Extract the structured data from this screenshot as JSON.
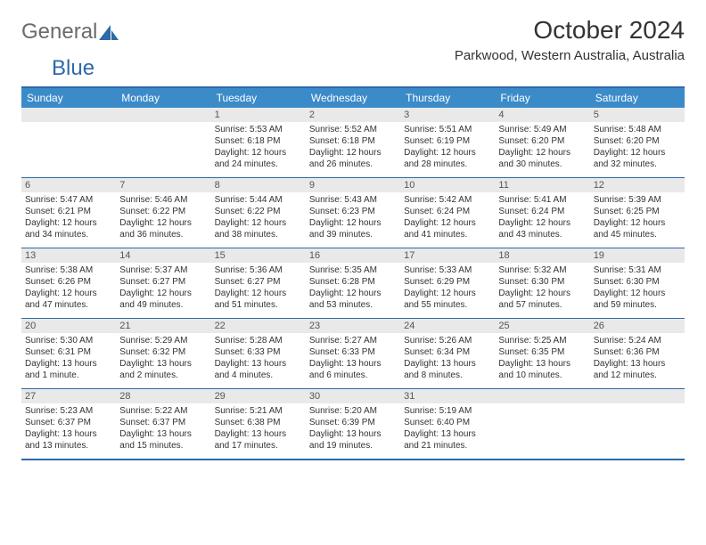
{
  "logo": {
    "part1": "General",
    "part2": "Blue"
  },
  "title": "October 2024",
  "location": "Parkwood, Western Australia, Australia",
  "colors": {
    "header_bg": "#3b8bc9",
    "border": "#2f6aa8",
    "daynum_bg": "#e9e9e9",
    "text": "#333333",
    "header_text": "#ffffff"
  },
  "dayHeaders": [
    "Sunday",
    "Monday",
    "Tuesday",
    "Wednesday",
    "Thursday",
    "Friday",
    "Saturday"
  ],
  "weeks": [
    [
      null,
      null,
      {
        "n": "1",
        "sunrise": "5:53 AM",
        "sunset": "6:18 PM",
        "daylight": "12 hours and 24 minutes."
      },
      {
        "n": "2",
        "sunrise": "5:52 AM",
        "sunset": "6:18 PM",
        "daylight": "12 hours and 26 minutes."
      },
      {
        "n": "3",
        "sunrise": "5:51 AM",
        "sunset": "6:19 PM",
        "daylight": "12 hours and 28 minutes."
      },
      {
        "n": "4",
        "sunrise": "5:49 AM",
        "sunset": "6:20 PM",
        "daylight": "12 hours and 30 minutes."
      },
      {
        "n": "5",
        "sunrise": "5:48 AM",
        "sunset": "6:20 PM",
        "daylight": "12 hours and 32 minutes."
      }
    ],
    [
      {
        "n": "6",
        "sunrise": "5:47 AM",
        "sunset": "6:21 PM",
        "daylight": "12 hours and 34 minutes."
      },
      {
        "n": "7",
        "sunrise": "5:46 AM",
        "sunset": "6:22 PM",
        "daylight": "12 hours and 36 minutes."
      },
      {
        "n": "8",
        "sunrise": "5:44 AM",
        "sunset": "6:22 PM",
        "daylight": "12 hours and 38 minutes."
      },
      {
        "n": "9",
        "sunrise": "5:43 AM",
        "sunset": "6:23 PM",
        "daylight": "12 hours and 39 minutes."
      },
      {
        "n": "10",
        "sunrise": "5:42 AM",
        "sunset": "6:24 PM",
        "daylight": "12 hours and 41 minutes."
      },
      {
        "n": "11",
        "sunrise": "5:41 AM",
        "sunset": "6:24 PM",
        "daylight": "12 hours and 43 minutes."
      },
      {
        "n": "12",
        "sunrise": "5:39 AM",
        "sunset": "6:25 PM",
        "daylight": "12 hours and 45 minutes."
      }
    ],
    [
      {
        "n": "13",
        "sunrise": "5:38 AM",
        "sunset": "6:26 PM",
        "daylight": "12 hours and 47 minutes."
      },
      {
        "n": "14",
        "sunrise": "5:37 AM",
        "sunset": "6:27 PM",
        "daylight": "12 hours and 49 minutes."
      },
      {
        "n": "15",
        "sunrise": "5:36 AM",
        "sunset": "6:27 PM",
        "daylight": "12 hours and 51 minutes."
      },
      {
        "n": "16",
        "sunrise": "5:35 AM",
        "sunset": "6:28 PM",
        "daylight": "12 hours and 53 minutes."
      },
      {
        "n": "17",
        "sunrise": "5:33 AM",
        "sunset": "6:29 PM",
        "daylight": "12 hours and 55 minutes."
      },
      {
        "n": "18",
        "sunrise": "5:32 AM",
        "sunset": "6:30 PM",
        "daylight": "12 hours and 57 minutes."
      },
      {
        "n": "19",
        "sunrise": "5:31 AM",
        "sunset": "6:30 PM",
        "daylight": "12 hours and 59 minutes."
      }
    ],
    [
      {
        "n": "20",
        "sunrise": "5:30 AM",
        "sunset": "6:31 PM",
        "daylight": "13 hours and 1 minute."
      },
      {
        "n": "21",
        "sunrise": "5:29 AM",
        "sunset": "6:32 PM",
        "daylight": "13 hours and 2 minutes."
      },
      {
        "n": "22",
        "sunrise": "5:28 AM",
        "sunset": "6:33 PM",
        "daylight": "13 hours and 4 minutes."
      },
      {
        "n": "23",
        "sunrise": "5:27 AM",
        "sunset": "6:33 PM",
        "daylight": "13 hours and 6 minutes."
      },
      {
        "n": "24",
        "sunrise": "5:26 AM",
        "sunset": "6:34 PM",
        "daylight": "13 hours and 8 minutes."
      },
      {
        "n": "25",
        "sunrise": "5:25 AM",
        "sunset": "6:35 PM",
        "daylight": "13 hours and 10 minutes."
      },
      {
        "n": "26",
        "sunrise": "5:24 AM",
        "sunset": "6:36 PM",
        "daylight": "13 hours and 12 minutes."
      }
    ],
    [
      {
        "n": "27",
        "sunrise": "5:23 AM",
        "sunset": "6:37 PM",
        "daylight": "13 hours and 13 minutes."
      },
      {
        "n": "28",
        "sunrise": "5:22 AM",
        "sunset": "6:37 PM",
        "daylight": "13 hours and 15 minutes."
      },
      {
        "n": "29",
        "sunrise": "5:21 AM",
        "sunset": "6:38 PM",
        "daylight": "13 hours and 17 minutes."
      },
      {
        "n": "30",
        "sunrise": "5:20 AM",
        "sunset": "6:39 PM",
        "daylight": "13 hours and 19 minutes."
      },
      {
        "n": "31",
        "sunrise": "5:19 AM",
        "sunset": "6:40 PM",
        "daylight": "13 hours and 21 minutes."
      },
      null,
      null
    ]
  ],
  "labels": {
    "sunrise": "Sunrise: ",
    "sunset": "Sunset: ",
    "daylight": "Daylight: "
  }
}
